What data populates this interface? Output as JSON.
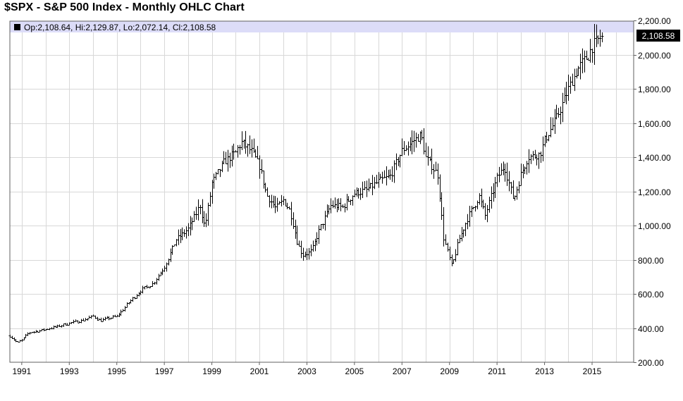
{
  "title": "$SPX - S&P 500 Index - Monthly OHLC Chart",
  "ohlc_readout": "Op:2,108.64, Hi:2,129.87, Lo:2,072.14, Cl:2,108.58",
  "last_price_label": "2,108.58",
  "colors": {
    "bar": "#000000",
    "grid": "#d8d8d8",
    "band": "#dcdcf8",
    "border": "#606060",
    "last_box": "#000000"
  },
  "chart_data": {
    "type": "ohlc",
    "title": "$SPX - S&P 500 Index - Monthly OHLC Chart",
    "xlabel": "",
    "ylabel": "",
    "x_range": [
      1990.5,
      2016.75
    ],
    "y_range": [
      200,
      2200
    ],
    "y_ticks": [
      200,
      400,
      600,
      800,
      1000,
      1200,
      1400,
      1600,
      1800,
      2000,
      2200
    ],
    "y_tick_labels": [
      "200.00",
      "400.00",
      "600.00",
      "800.00",
      "1,000.00",
      "1,200.00",
      "1,400.00",
      "1,600.00",
      "1,800.00",
      "2,000.00",
      "2,200.00"
    ],
    "x_ticks": [
      1991,
      1993,
      1995,
      1997,
      1999,
      2001,
      2003,
      2005,
      2007,
      2009,
      2011,
      2013,
      2015
    ],
    "x_tick_labels": [
      "1991",
      "1993",
      "1995",
      "1997",
      "1999",
      "2001",
      "2003",
      "2005",
      "2007",
      "2009",
      "2011",
      "2013",
      "2015"
    ],
    "close_anchors": [
      [
        1990.5,
        355
      ],
      [
        1990.8,
        315
      ],
      [
        1991.0,
        330
      ],
      [
        1991.3,
        375
      ],
      [
        1991.9,
        390
      ],
      [
        1992.5,
        410
      ],
      [
        1993.0,
        430
      ],
      [
        1993.5,
        445
      ],
      [
        1994.0,
        470
      ],
      [
        1994.3,
        445
      ],
      [
        1995.0,
        470
      ],
      [
        1995.5,
        550
      ],
      [
        1996.0,
        620
      ],
      [
        1996.5,
        660
      ],
      [
        1997.0,
        760
      ],
      [
        1997.5,
        920
      ],
      [
        1998.0,
        980
      ],
      [
        1998.5,
        1120
      ],
      [
        1998.7,
        990
      ],
      [
        1999.0,
        1250
      ],
      [
        1999.5,
        1370
      ],
      [
        2000.0,
        1430
      ],
      [
        2000.25,
        1490
      ],
      [
        2000.7,
        1430
      ],
      [
        2001.0,
        1350
      ],
      [
        2001.3,
        1180
      ],
      [
        2001.7,
        1100
      ],
      [
        2002.0,
        1150
      ],
      [
        2002.3,
        1080
      ],
      [
        2002.6,
        900
      ],
      [
        2002.8,
        830
      ],
      [
        2003.2,
        850
      ],
      [
        2003.5,
        970
      ],
      [
        2004.0,
        1120
      ],
      [
        2004.5,
        1110
      ],
      [
        2005.0,
        1190
      ],
      [
        2005.5,
        1210
      ],
      [
        2006.0,
        1260
      ],
      [
        2006.5,
        1290
      ],
      [
        2007.0,
        1440
      ],
      [
        2007.5,
        1500
      ],
      [
        2007.8,
        1530
      ],
      [
        2008.0,
        1400
      ],
      [
        2008.5,
        1300
      ],
      [
        2008.75,
        930
      ],
      [
        2009.1,
        760
      ],
      [
        2009.4,
        920
      ],
      [
        2009.8,
        1060
      ],
      [
        2010.25,
        1170
      ],
      [
        2010.5,
        1060
      ],
      [
        2011.0,
        1280
      ],
      [
        2011.3,
        1350
      ],
      [
        2011.7,
        1150
      ],
      [
        2012.0,
        1300
      ],
      [
        2012.3,
        1400
      ],
      [
        2012.8,
        1420
      ],
      [
        2013.0,
        1500
      ],
      [
        2013.5,
        1630
      ],
      [
        2014.0,
        1800
      ],
      [
        2014.4,
        1920
      ],
      [
        2014.8,
        1990
      ],
      [
        2015.0,
        2050
      ],
      [
        2015.4,
        2108
      ]
    ],
    "last_bar": {
      "open": 2108.64,
      "high": 2129.87,
      "low": 2072.14,
      "close": 2108.58
    }
  }
}
